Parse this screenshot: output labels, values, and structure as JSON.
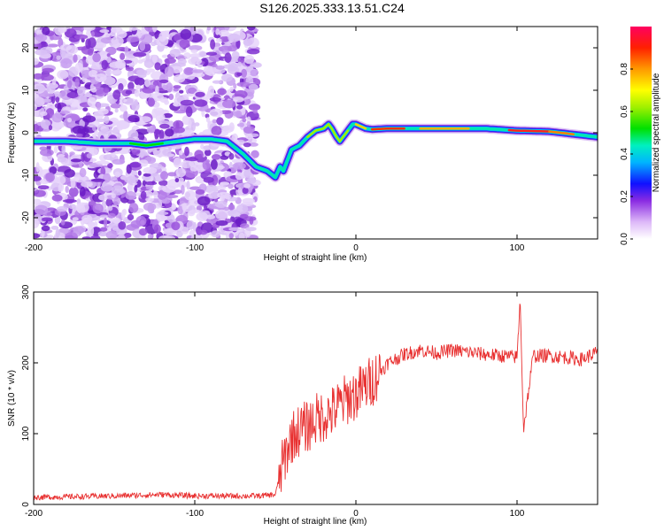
{
  "title": "S126.2025.333.13.51.C24",
  "chart_data": [
    {
      "type": "heatmap",
      "name": "spectrogram",
      "xlabel": "Height of straight line (km)",
      "ylabel": "Frequency (Hz)",
      "xlim": [
        -200,
        150
      ],
      "ylim": [
        -25,
        25
      ],
      "xticks": [
        -200,
        -100,
        0,
        100
      ],
      "yticks": [
        -20,
        -10,
        0,
        10,
        20
      ],
      "colorbar": {
        "label": "Normalized spectral amplitude",
        "range": [
          0,
          1
        ],
        "ticks": [
          0.0,
          0.2,
          0.4,
          0.6,
          0.8
        ]
      },
      "ridge": {
        "x": [
          -200,
          -180,
          -160,
          -140,
          -130,
          -120,
          -110,
          -100,
          -90,
          -80,
          -70,
          -62,
          -55,
          -50,
          -47,
          -45,
          -43,
          -40,
          -35,
          -30,
          -25,
          -20,
          -17,
          -15,
          -12,
          -10,
          -8,
          -5,
          -2,
          0,
          3,
          6,
          10,
          20,
          40,
          60,
          80,
          100,
          120,
          150
        ],
        "y": [
          -2,
          -2,
          -2.5,
          -2.5,
          -3,
          -2.5,
          -2,
          -1.5,
          -1.5,
          -2,
          -5,
          -8,
          -9,
          -10.5,
          -8,
          -9,
          -7,
          -4,
          -3,
          -1,
          0.5,
          1,
          2,
          1,
          -1,
          -2,
          -1,
          0.5,
          2,
          2,
          1.5,
          1,
          0.8,
          1,
          1,
          1,
          1,
          0.5,
          0.3,
          -1
        ]
      },
      "noise_region_x": [
        -200,
        -62
      ]
    },
    {
      "type": "line",
      "name": "snr",
      "xlabel": "Height of straight line (km)",
      "ylabel": "SNR (10 * v/v)",
      "xlim": [
        -200,
        150
      ],
      "ylim": [
        0,
        300
      ],
      "xticks": [
        -200,
        -100,
        0,
        100
      ],
      "yticks": [
        0,
        100,
        200,
        300
      ],
      "series": [
        {
          "name": "SNR",
          "color": "#e83030",
          "x": [
            -200,
            -150,
            -120,
            -100,
            -60,
            -50,
            -45,
            -40,
            -35,
            -30,
            -25,
            -20,
            -15,
            -10,
            -5,
            0,
            10,
            20,
            30,
            40,
            50,
            60,
            70,
            80,
            90,
            100,
            102,
            104,
            110,
            120,
            130,
            140,
            150
          ],
          "y": [
            10,
            12,
            14,
            12,
            12,
            14,
            60,
            95,
            105,
            110,
            120,
            125,
            130,
            140,
            150,
            155,
            175,
            200,
            212,
            218,
            214,
            218,
            215,
            212,
            210,
            208,
            290,
            105,
            210,
            210,
            208,
            205,
            215
          ]
        }
      ]
    }
  ]
}
